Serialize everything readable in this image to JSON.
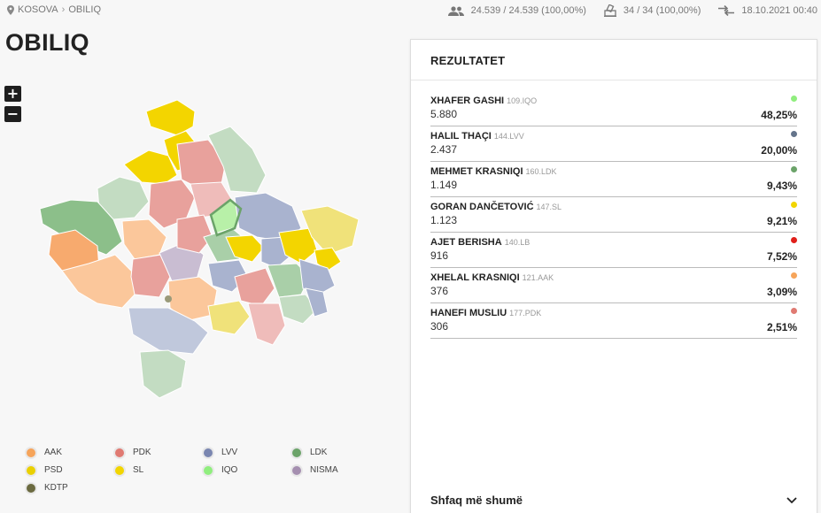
{
  "breadcrumb": {
    "root": "KOSOVA",
    "current": "OBILIQ"
  },
  "stats": {
    "voters": "24.539 / 24.539 (100,00%)",
    "stations": "34 / 34 (100,00%)",
    "updated": "18.10.2021 00:40"
  },
  "page_title": "OBILIQ",
  "zoom": {
    "in": "+",
    "out": "−"
  },
  "panel": {
    "title": "REZULTATET",
    "show_more": "Shfaq më shumë",
    "results": [
      {
        "name": "XHAFER GASHI",
        "party": "109.IQO",
        "votes": "5.880",
        "pct": "48,25%",
        "color": "#90ee7e"
      },
      {
        "name": "HALIL THAÇI",
        "party": "144.LVV",
        "votes": "2.437",
        "pct": "20,00%",
        "color": "#64748b"
      },
      {
        "name": "MEHMET KRASNIQI",
        "party": "160.LDK",
        "votes": "1.149",
        "pct": "9,43%",
        "color": "#6ba369"
      },
      {
        "name": "GORAN DANČETOVIĆ",
        "party": "147.SL",
        "votes": "1.123",
        "pct": "9,21%",
        "color": "#f2d500"
      },
      {
        "name": "AJET BERISHA",
        "party": "140.LB",
        "votes": "916",
        "pct": "7,52%",
        "color": "#e0201b"
      },
      {
        "name": "XHELAL KRASNIQI",
        "party": "121.AAK",
        "votes": "376",
        "pct": "3,09%",
        "color": "#f6a45a"
      },
      {
        "name": "HANEFI MUSLIU",
        "party": "177.PDK",
        "votes": "306",
        "pct": "2,51%",
        "color": "#e07a72"
      }
    ]
  },
  "legend": [
    {
      "label": "AAK",
      "color": "#f6a45a"
    },
    {
      "label": "PDK",
      "color": "#e07a72"
    },
    {
      "label": "LVV",
      "color": "#7a86b0"
    },
    {
      "label": "LDK",
      "color": "#6ba369"
    },
    {
      "label": "PSD",
      "color": "#ead000"
    },
    {
      "label": "SL",
      "color": "#f2d500"
    },
    {
      "label": "IQO",
      "color": "#90ee7e"
    },
    {
      "label": "NISMA",
      "color": "#a58fb0"
    },
    {
      "label": "KDTP",
      "color": "#6b6a40"
    }
  ],
  "map_colors": {
    "aak": "#fbc79b",
    "aak_dark": "#f7aa6e",
    "pdk": "#e8a19c",
    "pdk_light": "#efbcba",
    "lvv": "#a9b3cf",
    "lvv_light": "#c0c8dc",
    "ldk": "#a9cfa8",
    "ldk_dark": "#8cbf8a",
    "sl": "#f3d500",
    "psd": "#f0e27a",
    "iqo": "#b8f0a8",
    "nisma": "#c9bdd2",
    "ldk_light": "#c3dcc2"
  }
}
